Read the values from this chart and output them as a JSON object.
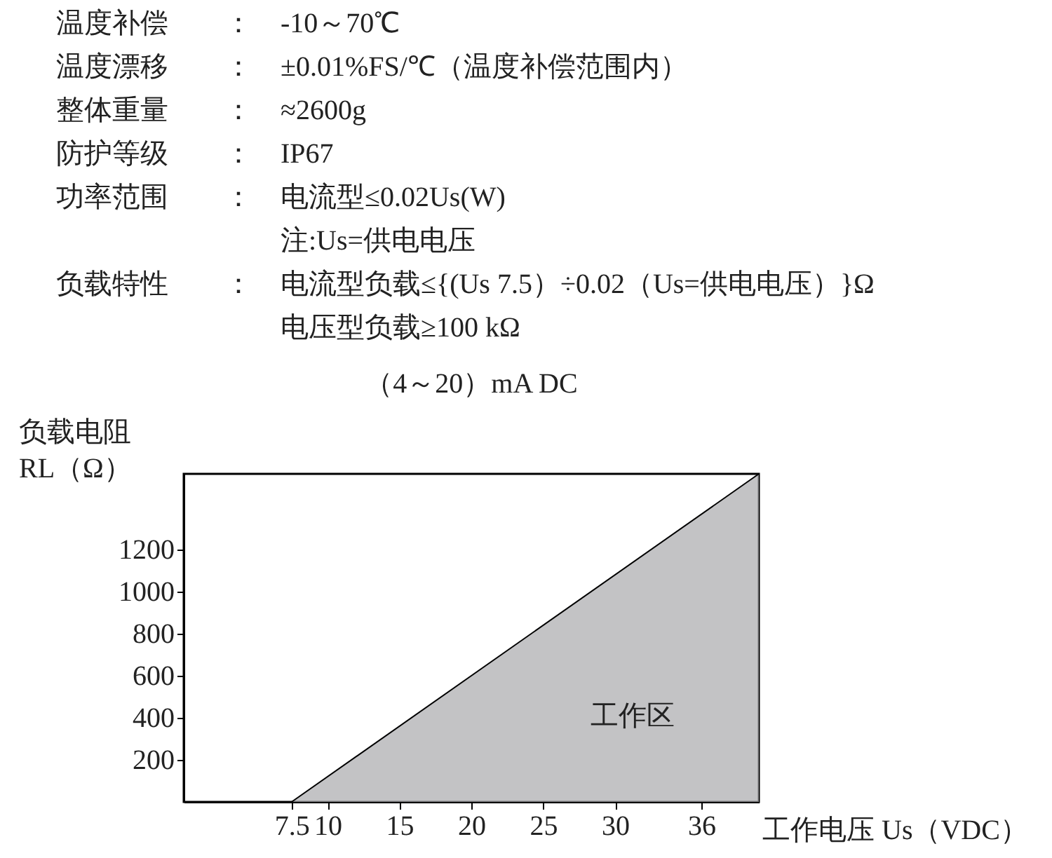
{
  "chart_data": {
    "type": "area",
    "title": "（4～20）mA DC",
    "xlabel": "工作电压 Us（VDC）",
    "ylabel": "负载电阻\nRL（Ω）",
    "annotations": [
      "温度补偿 ： -10～70℃",
      "温度漂移 ： ±0.01%FS/℃（温度补偿范围内）",
      "整体重量 ： ≈2600g",
      "防护等级 ： IP67",
      "功率范围 ： 电流型≤0.02Us(W)",
      "注:Us=供电电压",
      "负载特性 ： 电流型负载≤{(Us 7.5）÷0.02（Us=供电电压）}Ω",
      "电压型负载≥100 kΩ",
      "工作区"
    ],
    "x": [
      7.5,
      40
    ],
    "series": [
      {
        "color": "#a9aaad",
        "values": [
          0,
          1560
        ]
      }
    ],
    "xlim": [
      0,
      40
    ],
    "xticks": [
      7.5,
      10,
      15,
      20,
      25,
      30,
      36
    ],
    "ylim": [
      0,
      1560
    ],
    "yticks": [
      200,
      400,
      600,
      800,
      1000,
      1200
    ],
    "grid": false
  }
}
